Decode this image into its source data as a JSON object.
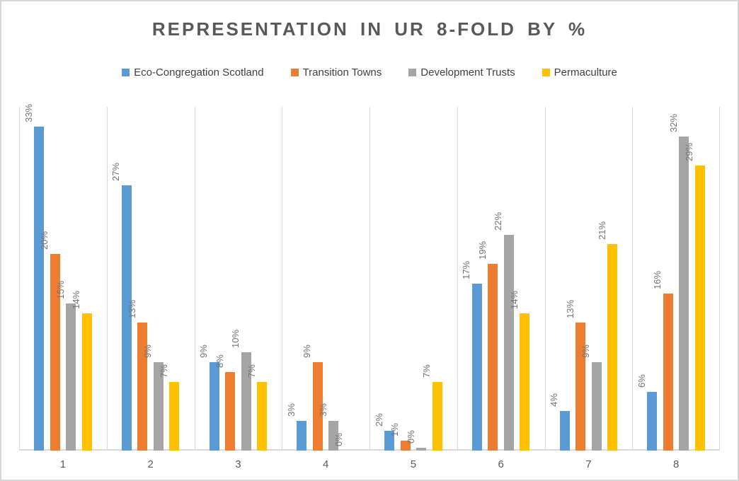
{
  "title": "REPRESENTATION IN UR 8-FOLD BY %",
  "chart_data": {
    "type": "bar",
    "title": "REPRESENTATION IN UR 8-FOLD BY %",
    "xlabel": "",
    "ylabel": "",
    "categories": [
      "1",
      "2",
      "3",
      "4",
      "5",
      "6",
      "7",
      "8"
    ],
    "series": [
      {
        "name": "Eco-Congregation Scotland",
        "color": "#5B9BD5",
        "values": [
          33,
          27,
          9,
          3,
          2,
          17,
          4,
          6
        ],
        "labels": [
          "33%",
          "27%",
          "9%",
          "3%",
          "2%",
          "17%",
          "4%",
          "6%"
        ]
      },
      {
        "name": "Transition Towns",
        "color": "#ED7D31",
        "values": [
          20,
          13,
          8,
          9,
          1,
          19,
          13,
          16
        ],
        "labels": [
          "20%",
          "13%",
          "8%",
          "9%",
          "1%",
          "19%",
          "13%",
          "16%"
        ]
      },
      {
        "name": "Development Trusts",
        "color": "#A5A5A5",
        "values": [
          15,
          9,
          10,
          3,
          0.3,
          22,
          9,
          32
        ],
        "labels": [
          "15%",
          "9%",
          "10%",
          "3%",
          "0%",
          "22%",
          "9%",
          "32%"
        ]
      },
      {
        "name": "Permaculture",
        "color": "#FFC000",
        "values": [
          14,
          7,
          7,
          0,
          7,
          14,
          21,
          29
        ],
        "labels": [
          "14%",
          "7%",
          "7%",
          "0%",
          "7%",
          "14%",
          "21%",
          "29%"
        ]
      }
    ],
    "ylim": [
      0,
      35
    ],
    "y_axis_labels_visible": false,
    "grid": "vertical-category-separators",
    "legend_position": "top",
    "data_label_rotation": -90,
    "colors": {
      "title": "#595959",
      "legend_text": "#404040",
      "data_label": "#737373",
      "category_label": "#595959",
      "gridline": "#D9D9D9",
      "frame_border": "#D6D6D6",
      "background": "#FFFFFF"
    }
  }
}
